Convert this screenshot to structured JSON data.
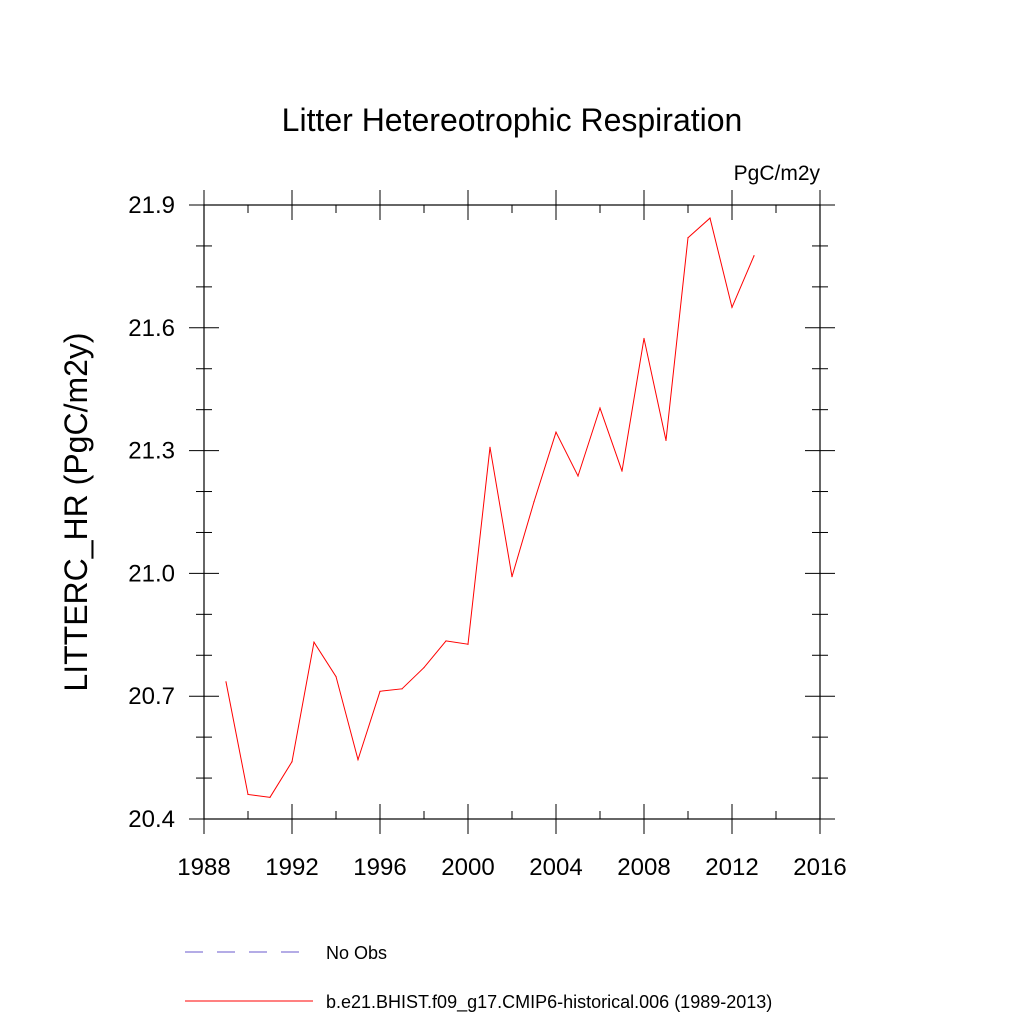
{
  "chart_data": {
    "type": "line",
    "title": "Litter Hetereotrophic Respiration",
    "units_label": "PgC/m2y",
    "xlabel": "",
    "ylabel": "LITTERC_HR  (PgC/m2y)",
    "xlim": [
      1988,
      2016
    ],
    "ylim": [
      20.4,
      21.9
    ],
    "x_ticks": [
      1988,
      1992,
      1996,
      2000,
      2004,
      2008,
      2012,
      2016
    ],
    "x_minor_step": 2,
    "y_ticks": [
      20.4,
      20.7,
      21.0,
      21.3,
      21.6,
      21.9
    ],
    "y_minor_step": 0.1,
    "series": [
      {
        "name": "b.e21.BHIST.f09_g17.CMIP6-historical.006 (1989-2013)",
        "color": "#ff0000",
        "style": "solid",
        "x": [
          1989,
          1990,
          1991,
          1992,
          1993,
          1994,
          1995,
          1996,
          1997,
          1998,
          1999,
          2000,
          2001,
          2002,
          2003,
          2004,
          2005,
          2006,
          2007,
          2008,
          2009,
          2010,
          2011,
          2012,
          2013
        ],
        "values": [
          20.735,
          20.46,
          20.453,
          20.54,
          20.832,
          20.748,
          20.545,
          20.712,
          20.718,
          20.77,
          20.835,
          20.827,
          21.308,
          20.992,
          21.175,
          21.345,
          21.238,
          21.404,
          21.25,
          21.574,
          21.325,
          21.82,
          21.868,
          21.65,
          21.776
        ]
      }
    ],
    "legend": [
      {
        "label": "No Obs",
        "color": "#6a5acd",
        "style": "dashed"
      },
      {
        "label": "b.e21.BHIST.f09_g17.CMIP6-historical.006 (1989-2013)",
        "color": "#ff0000",
        "style": "solid"
      }
    ]
  }
}
